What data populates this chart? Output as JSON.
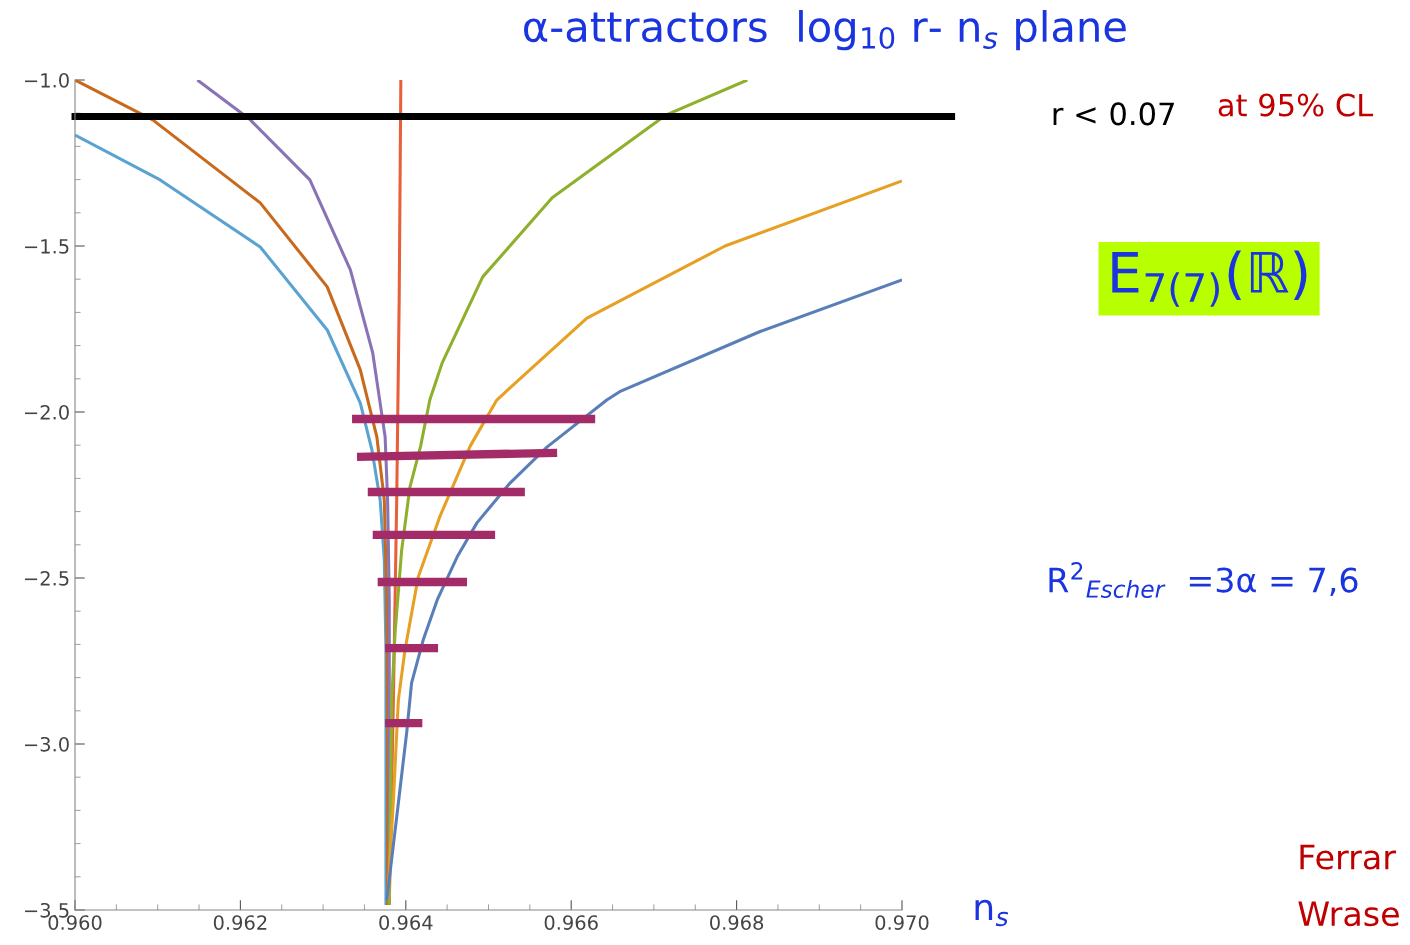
{
  "chart_data": {
    "type": "line",
    "title": "α-attractors  log$_{10}$ r- n$_{s}$ plane",
    "xlabel": "n$_{s}$",
    "xlim": [
      0.96,
      0.97
    ],
    "ylim": [
      -3.5,
      -1.0
    ],
    "xticks": [
      {
        "value": 0.96,
        "label": "0.960"
      },
      {
        "value": 0.962,
        "label": "0.962"
      },
      {
        "value": 0.964,
        "label": "0.964"
      },
      {
        "value": 0.966,
        "label": "0.966"
      },
      {
        "value": 0.968,
        "label": "0.968"
      },
      {
        "value": 0.97,
        "label": "0.970"
      }
    ],
    "yticks": [
      {
        "value": -3.5,
        "label": "−3.5"
      },
      {
        "value": -3.0,
        "label": "−3.0"
      },
      {
        "value": -2.5,
        "label": "−2.5"
      },
      {
        "value": -2.0,
        "label": "−2.0"
      },
      {
        "value": -1.5,
        "label": "−1.5"
      },
      {
        "value": -1.0,
        "label": "−1.0"
      }
    ],
    "grid": false,
    "legend": false,
    "marker": "none",
    "line_style": "solid",
    "series": [
      {
        "color": "#5aa3d0",
        "x": [
          0.96,
          0.96103,
          0.96224,
          0.96305,
          0.96345,
          0.96359,
          0.96369,
          0.96374,
          0.96376,
          0.96376,
          0.96376
        ],
        "values": [
          -1.166,
          -1.301,
          -1.503,
          -1.753,
          -1.973,
          -2.114,
          -2.265,
          -2.446,
          -2.717,
          -3.018,
          -3.485
        ]
      },
      {
        "color": "#c8691c",
        "x": [
          0.96,
          0.96094,
          0.96224,
          0.96305,
          0.96345,
          0.96365,
          0.96374,
          0.96377,
          0.96378,
          0.96378
        ],
        "values": [
          -1.0,
          -1.12,
          -1.37,
          -1.623,
          -1.873,
          -2.075,
          -2.265,
          -2.566,
          -3.018,
          -3.485
        ]
      },
      {
        "color": "#8a73b5",
        "x": [
          0.96148,
          0.96212,
          0.96284,
          0.96333,
          0.9636,
          0.96375,
          0.96378,
          0.9638,
          0.9638,
          0.9638
        ],
        "values": [
          -1.0,
          -1.12,
          -1.301,
          -1.572,
          -1.822,
          -2.075,
          -2.265,
          -2.566,
          -3.018,
          -3.485
        ]
      },
      {
        "color": "#e8603a",
        "x": [
          0.96394,
          0.96392,
          0.96389,
          0.96385,
          0.9638
        ],
        "values": [
          -1.0,
          -1.663,
          -2.265,
          -2.867,
          -3.485
        ]
      },
      {
        "color": "#8fb02c",
        "x": [
          0.96813,
          0.96715,
          0.96577,
          0.96493,
          0.96444,
          0.96429,
          0.96418,
          0.96405,
          0.96395,
          0.96387,
          0.96383,
          0.9638
        ],
        "values": [
          -1.0,
          -1.105,
          -1.355,
          -1.593,
          -1.852,
          -1.964,
          -2.102,
          -2.226,
          -2.416,
          -2.666,
          -2.867,
          -3.485
        ]
      },
      {
        "color": "#e6a023",
        "x": [
          0.97,
          0.96786,
          0.96619,
          0.96527,
          0.9651,
          0.96478,
          0.96441,
          0.96415,
          0.96399,
          0.96391,
          0.96385,
          0.96378
        ],
        "values": [
          -1.304,
          -1.5,
          -1.717,
          -1.925,
          -1.964,
          -2.102,
          -2.316,
          -2.497,
          -2.717,
          -2.867,
          -3.169,
          -3.47
        ]
      },
      {
        "color": "#5a7fb8",
        "x": [
          0.97,
          0.96827,
          0.9666,
          0.96643,
          0.96571,
          0.96526,
          0.96486,
          0.96462,
          0.96438,
          0.96421,
          0.96407,
          0.96401,
          0.96389,
          0.96377
        ],
        "values": [
          -1.602,
          -1.759,
          -1.937,
          -1.964,
          -2.105,
          -2.214,
          -2.334,
          -2.437,
          -2.566,
          -2.687,
          -2.816,
          -2.967,
          -3.22,
          -3.47
        ]
      },
      {
        "color": "#a32c68",
        "x": [
          0.96335,
          0.96629
        ],
        "values": [
          -2.021,
          -2.021
        ]
      },
      {
        "color": "#a32c68",
        "x": [
          0.96341,
          0.96583
        ],
        "values": [
          -2.135,
          -2.123
        ]
      },
      {
        "color": "#a32c68",
        "x": [
          0.96354,
          0.96544
        ],
        "values": [
          -2.241,
          -2.241
        ]
      },
      {
        "color": "#a32c68",
        "x": [
          0.9636,
          0.96508
        ],
        "values": [
          -2.37,
          -2.37
        ]
      },
      {
        "color": "#a32c68",
        "x": [
          0.96366,
          0.96474
        ],
        "values": [
          -2.512,
          -2.512
        ]
      },
      {
        "color": "#a32c68",
        "x": [
          0.96375,
          0.96439
        ],
        "values": [
          -2.711,
          -2.711
        ]
      },
      {
        "color": "#a32c68",
        "x": [
          0.96375,
          0.9642
        ],
        "values": [
          -2.937,
          -2.937
        ]
      }
    ],
    "ref_lines": [
      {
        "axis": "y",
        "value": -1.11,
        "label": "r < 0.07",
        "color": "#000000"
      }
    ],
    "annotations": [
      "at 95% CL",
      "E$_{7(7)}$(ℝ)",
      "R$^{2}$$_{Escher}$  =3α = 7,6",
      "Ferrar",
      "Wrase"
    ]
  }
}
